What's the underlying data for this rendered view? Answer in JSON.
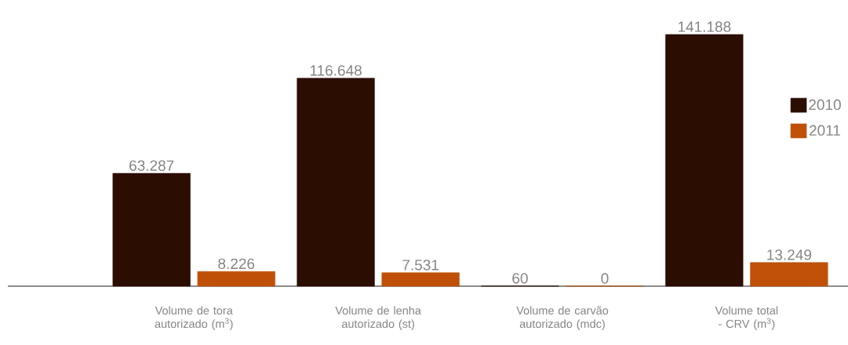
{
  "chart_data": {
    "type": "bar",
    "categories": [
      "Volume de tora autorizado (m$^{3}$)",
      "Volume de lenha autorizado (st)",
      "Volume de carvão autorizado (mdc)",
      "Volume total - CRV (m$^{3}$)"
    ],
    "series": [
      {
        "name": "2010",
        "color": "#2b0d02",
        "values": [
          63287,
          116648,
          60,
          141188
        ],
        "value_labels": [
          "63.287",
          "116.648",
          "60",
          "141.188"
        ]
      },
      {
        "name": "2011",
        "color": "#c05008",
        "values": [
          8226,
          7531,
          0,
          13249
        ],
        "value_labels": [
          "8.226",
          "7.531",
          "0",
          "13.249"
        ]
      }
    ],
    "tick_labels": "x",
    "legend": "top right"
  }
}
